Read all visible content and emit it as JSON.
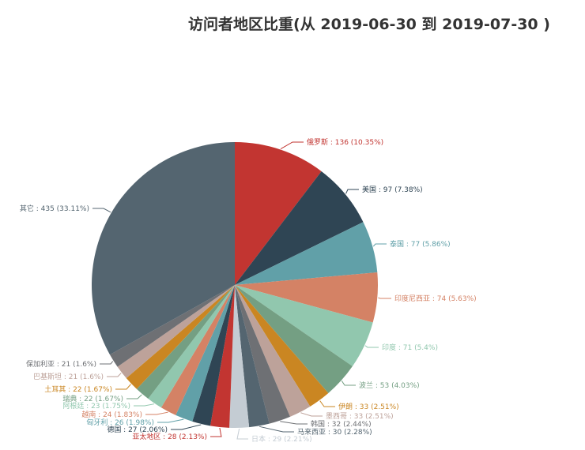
{
  "chart_data": {
    "type": "pie",
    "title": "访问者地区比重(从 2019-06-30 到 2019-07-30 )",
    "slices": [
      {
        "name": "俄罗斯",
        "value": 136,
        "percent": "10.35%",
        "color": "#c23531"
      },
      {
        "name": "美国",
        "value": 97,
        "percent": "7.38%",
        "color": "#2f4554"
      },
      {
        "name": "泰国",
        "value": 77,
        "percent": "5.86%",
        "color": "#61a0a8"
      },
      {
        "name": "印度尼西亚",
        "value": 74,
        "percent": "5.63%",
        "color": "#d48265"
      },
      {
        "name": "印度",
        "value": 71,
        "percent": "5.4%",
        "color": "#91c7ae"
      },
      {
        "name": "波兰",
        "value": 53,
        "percent": "4.03%",
        "color": "#749f83"
      },
      {
        "name": "伊朗",
        "value": 33,
        "percent": "2.51%",
        "color": "#ca8622"
      },
      {
        "name": "墨西哥",
        "value": 33,
        "percent": "2.51%",
        "color": "#bda29a"
      },
      {
        "name": "韩国",
        "value": 32,
        "percent": "2.44%",
        "color": "#6e7074"
      },
      {
        "name": "马来西亚",
        "value": 30,
        "percent": "2.28%",
        "color": "#546570"
      },
      {
        "name": "日本",
        "value": 29,
        "percent": "2.21%",
        "color": "#c4ccd3"
      },
      {
        "name": "亚太地区",
        "value": 28,
        "percent": "2.13%",
        "color": "#c23531"
      },
      {
        "name": "德国",
        "value": 27,
        "percent": "2.06%",
        "color": "#2f4554"
      },
      {
        "name": "匈牙利",
        "value": 26,
        "percent": "1.98%",
        "color": "#61a0a8"
      },
      {
        "name": "越南",
        "value": 24,
        "percent": "1.83%",
        "color": "#d48265"
      },
      {
        "name": "阿根廷",
        "value": 23,
        "percent": "1.75%",
        "color": "#91c7ae"
      },
      {
        "name": "瑞典",
        "value": 22,
        "percent": "1.67%",
        "color": "#749f83"
      },
      {
        "name": "土耳其",
        "value": 22,
        "percent": "1.67%",
        "color": "#ca8622"
      },
      {
        "name": "巴基斯坦",
        "value": 21,
        "percent": "1.6%",
        "color": "#bda29a"
      },
      {
        "name": "保加利亚",
        "value": 21,
        "percent": "1.6%",
        "color": "#6e7074"
      },
      {
        "name": "其它",
        "value": 435,
        "percent": "33.11%",
        "color": "#546570"
      }
    ]
  }
}
